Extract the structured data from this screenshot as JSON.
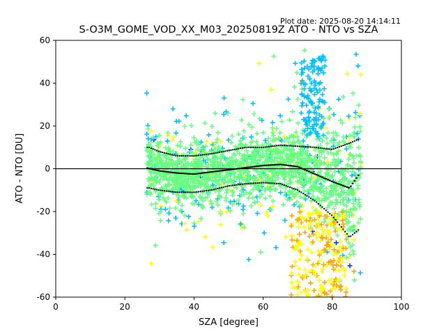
{
  "plot_date": "Plot date: 2025-08-20 14:14:11",
  "chart_data": {
    "type": "scatter",
    "title": "S-O3M_GOME_VOD_XX_M03_20250819Z ATO - NTO vs SZA",
    "xlabel": "SZA [degree]",
    "ylabel": "ATO - NTO [DU]",
    "xlim": [
      0,
      100
    ],
    "ylim": [
      -60,
      60
    ],
    "xticks": [
      0,
      20,
      40,
      60,
      80,
      100
    ],
    "yticks": [
      -60,
      -40,
      -20,
      0,
      20,
      40,
      60
    ],
    "grid": false,
    "reference_line_y": 0,
    "colors": {
      "density_low": "#00bfff",
      "density_mid": "#66ff80",
      "density_high": "#ffff00",
      "density_max": "#ffa500",
      "sparse": "#0033ff",
      "stats": "#000000"
    },
    "median": {
      "x": [
        26,
        30,
        35,
        40,
        45,
        50,
        55,
        60,
        65,
        70,
        75,
        80,
        85,
        88
      ],
      "y": [
        0.5,
        -1,
        -2,
        -2.5,
        -1.5,
        -0.5,
        0.5,
        1.5,
        2,
        1,
        -2.5,
        -6,
        -9,
        -2
      ]
    },
    "upper_band": {
      "x": [
        27,
        30,
        35,
        40,
        45,
        50,
        55,
        60,
        65,
        70,
        75,
        80,
        85,
        88
      ],
      "y": [
        10,
        8,
        6,
        6,
        7,
        8.5,
        10,
        10,
        11,
        10.5,
        10,
        9,
        12,
        14
      ]
    },
    "lower_band": {
      "x": [
        27,
        30,
        35,
        40,
        45,
        50,
        55,
        60,
        65,
        70,
        75,
        80,
        85,
        88
      ],
      "y": [
        -9,
        -10,
        -11,
        -11,
        -10,
        -8,
        -7,
        -6.5,
        -7,
        -10,
        -15,
        -22,
        -32,
        -28
      ]
    }
  }
}
